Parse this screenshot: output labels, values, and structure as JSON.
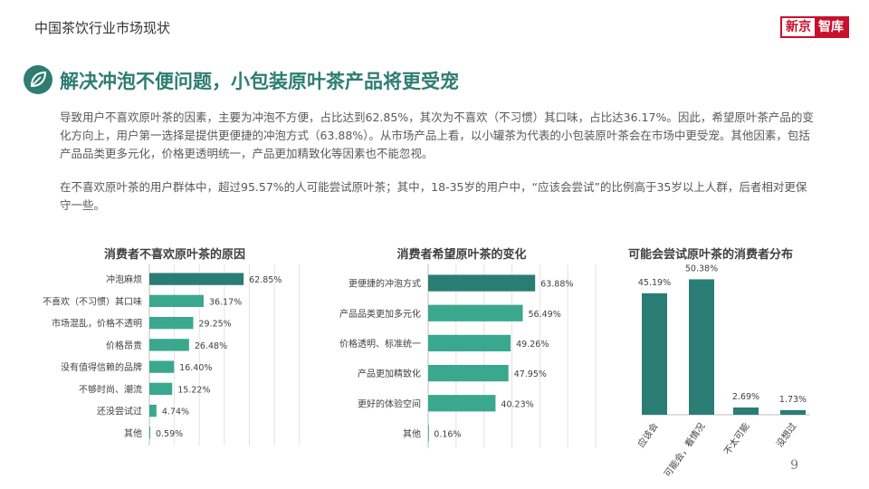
{
  "header": {
    "title": "中国茶饮行业市场现状",
    "logo_left": "新京",
    "logo_right": "智库"
  },
  "icon": "leaf-icon",
  "main_title": "解决冲泡不便问题，小包装原叶茶产品将更受宠",
  "paragraphs": [
    "导致用户不喜欢原叶茶的因素，主要为冲泡不方便，占比达到62.85%，其次为不喜欢（不习惯）其口味，占比达36.17%。因此，希望原叶茶产品的变化方向上，用户第一选择是提供更便捷的冲泡方式（63.88%）。从市场产品上看，以小罐茶为代表的小包装原叶茶会在市场中更受宠。其他因素，包括产品品类更多元化，价格更透明统一，产品更加精致化等因素也不能忽视。",
    "在不喜欢原叶茶的用户群体中，超过95.57%的人可能尝试原叶茶；其中，18-35岁的用户中，“应该会尝试”的比例高于35岁以上人群，后者相对更保守一些。"
  ],
  "colors": {
    "accent": "#2e7d72",
    "bar_dark": "#2a7d74",
    "bar_light": "#3aa88e",
    "logo_red": "#c8102e"
  },
  "page_number": "9",
  "chart_data": [
    {
      "type": "bar",
      "orientation": "horizontal",
      "title": "消费者不喜欢原叶茶的原因",
      "categories": [
        "冲泡麻烦",
        "不喜欢（不习惯）其口味",
        "市场混乱，价格不透明",
        "价格昂贵",
        "没有值得信赖的品牌",
        "不够时尚、潮流",
        "还没尝试过",
        "其他"
      ],
      "values": [
        62.85,
        36.17,
        29.25,
        26.48,
        16.4,
        15.22,
        4.74,
        0.59
      ],
      "labels": [
        "62.85%",
        "36.17%",
        "29.25%",
        "26.48%",
        "16.40%",
        "15.22%",
        "4.74%",
        "0.59%"
      ],
      "xlim": [
        0,
        100
      ],
      "grid": true
    },
    {
      "type": "bar",
      "orientation": "horizontal",
      "title": "消费者希望原叶茶的变化",
      "categories": [
        "更便捷的冲泡方式",
        "产品品类更加多元化",
        "价格透明、标准统一",
        "产品更加精致化",
        "更好的体验空间",
        "其他"
      ],
      "values": [
        63.88,
        56.49,
        49.26,
        47.95,
        40.23,
        0.16
      ],
      "labels": [
        "63.88%",
        "56.49%",
        "49.26%",
        "47.95%",
        "40.23%",
        "0.16%"
      ],
      "xlim": [
        0,
        100
      ],
      "grid": true
    },
    {
      "type": "bar",
      "orientation": "vertical",
      "title": "可能会尝试原叶茶的消费者分布",
      "categories": [
        "应该会",
        "可能会，看情况",
        "不太可能",
        "没想过"
      ],
      "values": [
        45.19,
        50.38,
        2.69,
        1.73
      ],
      "labels": [
        "45.19%",
        "50.38%",
        "2.69%",
        "1.73%"
      ],
      "ylim": [
        0,
        60
      ],
      "grid": false
    }
  ]
}
